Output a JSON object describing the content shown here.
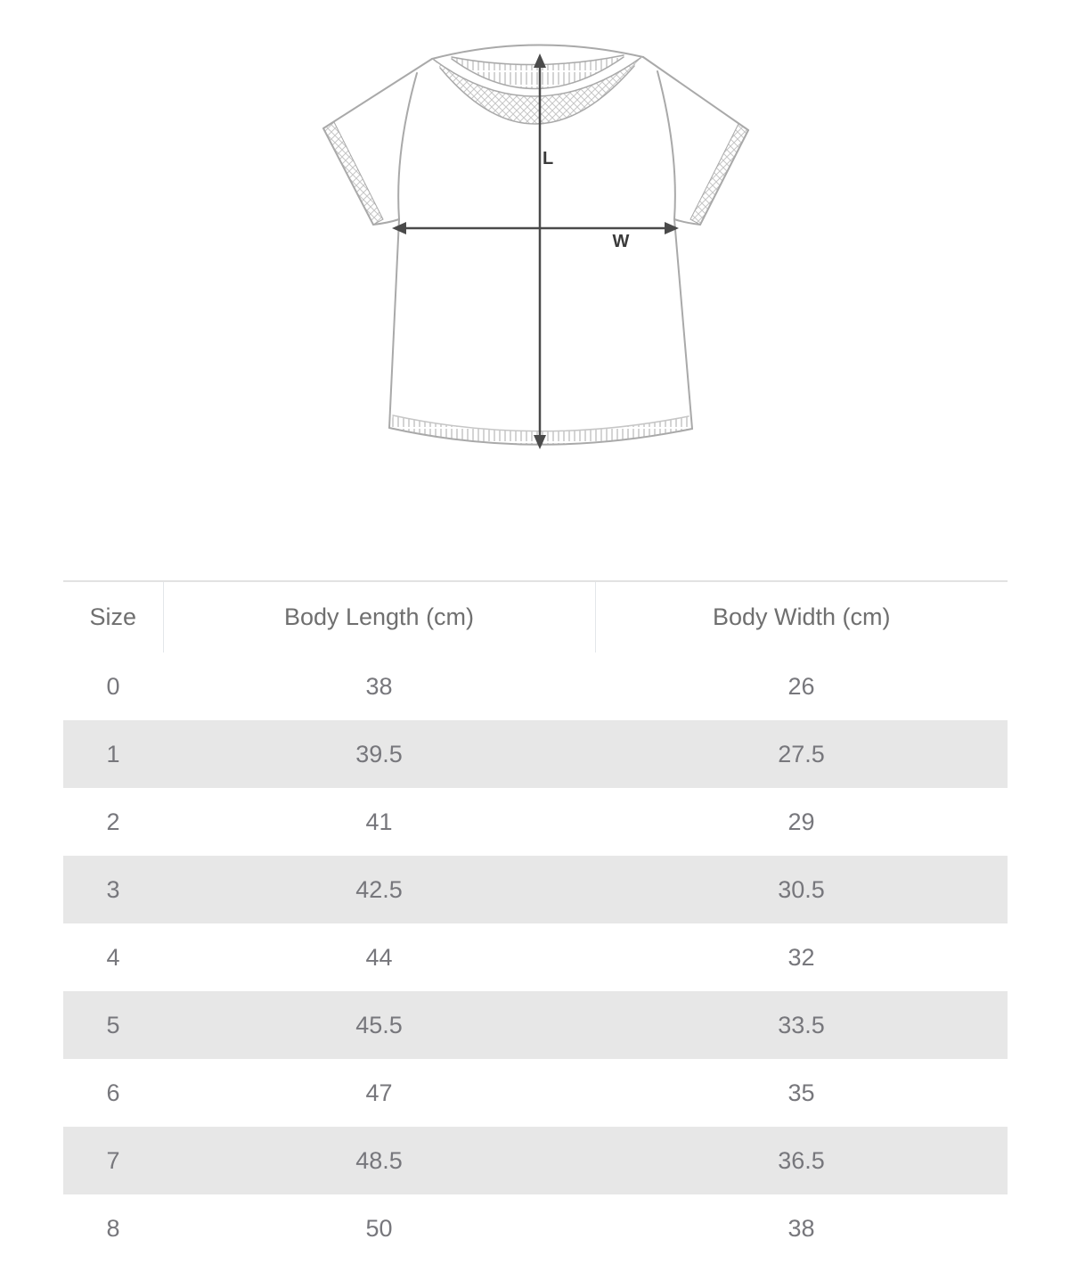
{
  "page": {
    "background": "#ffffff",
    "description": "T-shirt size guide with measurement diagram and size table"
  },
  "colors": {
    "zebra_row": "#e7e7e7",
    "header_text": "#6f6f6f",
    "cell_text": "#77777c",
    "table_border": "#e2e2e2",
    "header_divider": "#e3e6ea",
    "sketch_outline": "#a9a9a9",
    "sketch_detail": "#c6c6c6",
    "arrow": "#4a4a4a",
    "arrow_label": "#3a3a3a"
  },
  "figure": {
    "kind": "t-shirt measurement diagram",
    "length_label": "L",
    "width_label": "W"
  },
  "table": {
    "columns": [
      "Size",
      "Body Length (cm)",
      "Body Width (cm)"
    ],
    "rows": [
      {
        "size": "0",
        "body_length": "38",
        "body_width": "26"
      },
      {
        "size": "1",
        "body_length": "39.5",
        "body_width": "27.5"
      },
      {
        "size": "2",
        "body_length": "41",
        "body_width": "29"
      },
      {
        "size": "3",
        "body_length": "42.5",
        "body_width": "30.5"
      },
      {
        "size": "4",
        "body_length": "44",
        "body_width": "32"
      },
      {
        "size": "5",
        "body_length": "45.5",
        "body_width": "33.5"
      },
      {
        "size": "6",
        "body_length": "47",
        "body_width": "35"
      },
      {
        "size": "7",
        "body_length": "48.5",
        "body_width": "36.5"
      },
      {
        "size": "8",
        "body_length": "50",
        "body_width": "38"
      }
    ]
  },
  "chart_data": {
    "type": "table",
    "title": "T-shirt size chart",
    "columns": [
      "Size",
      "Body Length (cm)",
      "Body Width (cm)"
    ],
    "rows": [
      [
        "0",
        38,
        26
      ],
      [
        "1",
        39.5,
        27.5
      ],
      [
        "2",
        41,
        29
      ],
      [
        "3",
        42.5,
        30.5
      ],
      [
        "4",
        44,
        32
      ],
      [
        "5",
        45.5,
        33.5
      ],
      [
        "6",
        47,
        35
      ],
      [
        "7",
        48.5,
        36.5
      ],
      [
        "8",
        50,
        38
      ]
    ]
  }
}
